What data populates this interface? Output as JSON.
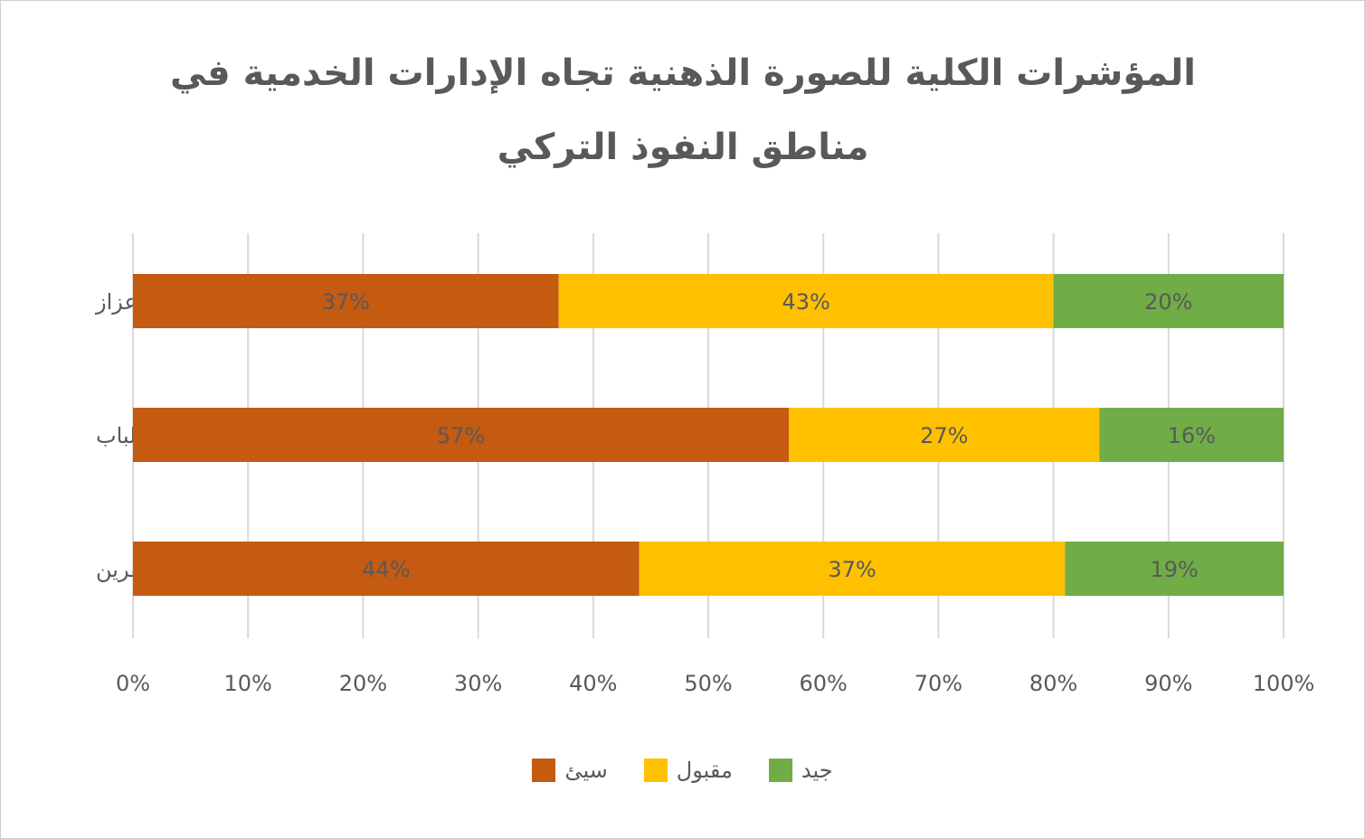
{
  "chart_data": {
    "type": "bar",
    "orientation": "horizontal",
    "stacked": "percent",
    "title": "المؤشرات الكلية للصورة الذهنية تجاه الإدارات الخدمية في مناطق النفوذ التركي",
    "categories": [
      "اعزاز",
      "الباب",
      "عفرين"
    ],
    "series": [
      {
        "name": "سيئ",
        "color": "#C55A11",
        "values": [
          37,
          57,
          44
        ],
        "labels": [
          "37%",
          "57%",
          "44%"
        ]
      },
      {
        "name": "مقبول",
        "color": "#FFC000",
        "values": [
          43,
          27,
          37
        ],
        "labels": [
          "43%",
          "27%",
          "37%"
        ]
      },
      {
        "name": "جيد",
        "color": "#70AD47",
        "values": [
          20,
          16,
          19
        ],
        "labels": [
          "20%",
          "16%",
          "19%"
        ]
      }
    ],
    "xlim": [
      0,
      100
    ],
    "x_ticks": [
      "0%",
      "10%",
      "20%",
      "30%",
      "40%",
      "50%",
      "60%",
      "70%",
      "80%",
      "90%",
      "100%"
    ],
    "grid": true,
    "legend_position": "bottom",
    "gridline_color": "#d9d9d9",
    "text_color": "#595959"
  }
}
